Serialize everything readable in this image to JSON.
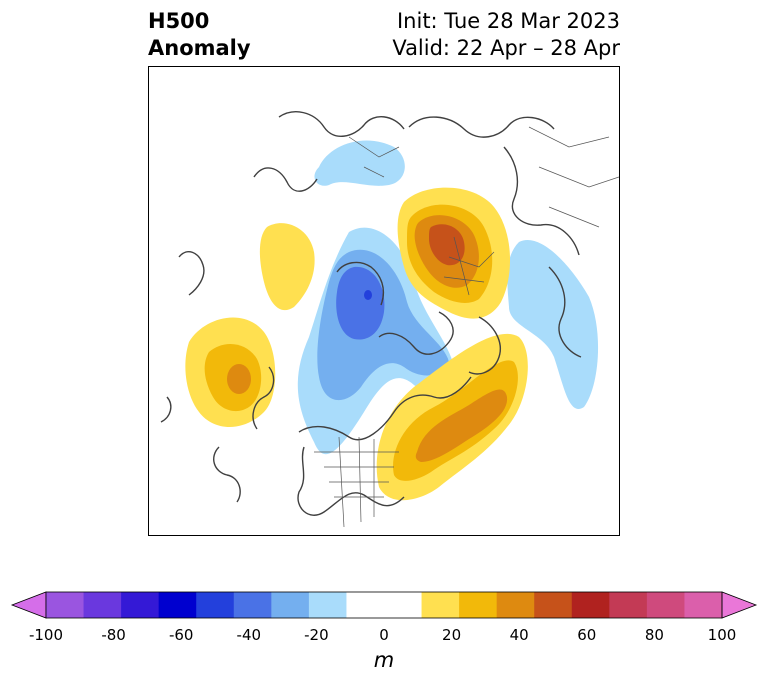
{
  "header": {
    "title_line1": "H500",
    "title_line2": "Anomaly",
    "init": "Init: Tue 28 Mar 2023",
    "valid": "Valid: 22 Apr – 28 Apr"
  },
  "colorbar": {
    "units": "m",
    "tick_labels": [
      "-100",
      "-80",
      "-60",
      "-40",
      "-20",
      "0",
      "20",
      "40",
      "60",
      "80",
      "100"
    ],
    "colors": [
      "#d56ee9",
      "#9a55e0",
      "#6a38de",
      "#3419d6",
      "#0000cf",
      "#2340dc",
      "#4a72e6",
      "#74afef",
      "#a9dcfb",
      "#ffffff",
      "#ffffff",
      "#ffe050",
      "#f2b90a",
      "#de8a10",
      "#c6521a",
      "#b0221f",
      "#c33a55",
      "#cf4a7d",
      "#db5fab",
      "#ea77d8"
    ]
  },
  "map": {
    "anomaly_colors": {
      "light_blue": "#a9dcfb",
      "mid_blue": "#74afef",
      "blue": "#4a72e6",
      "dark_blue": "#2340dc",
      "light_yellow": "#ffe050",
      "gold": "#f2b90a",
      "orange": "#de8a10",
      "dark_orange": "#c6521a",
      "red": "#b0221f"
    },
    "coastline_color": "#404040"
  }
}
